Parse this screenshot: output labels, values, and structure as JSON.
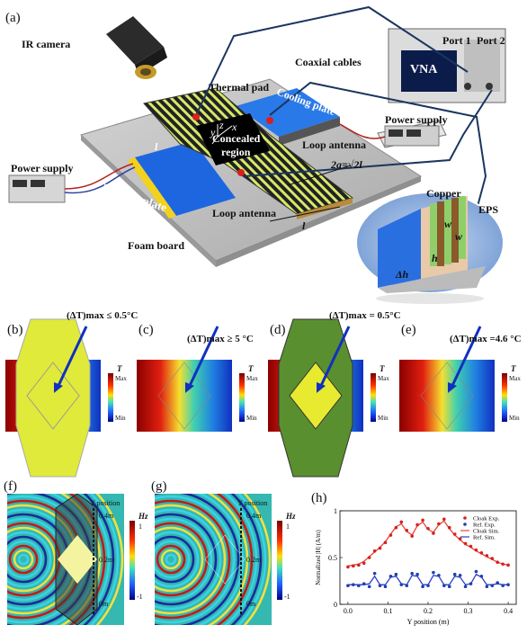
{
  "panel_a": {
    "letter": "(a)",
    "ir_camera": "IR camera",
    "coaxial_cables": "Coaxial cables",
    "vna": "VNA",
    "port1": "Port 1",
    "port2": "Port 2",
    "thermal_pad": "Thermal pad",
    "cooling_plate": "Cooling plate",
    "power_supply_right": "Power supply",
    "power_supply_left": "Power supply",
    "loop_antenna_top": "Loop antenna",
    "loop_antenna_bottom": "Loop antenna",
    "concealed_region_1": "Concealed",
    "concealed_region_2": "region",
    "heating_plate": "Heating plate",
    "foam_board": "Foam board",
    "copper": "Copper",
    "eps": "EPS",
    "dim_2a": "2a=√2l",
    "dim_l": "l",
    "dim_l_left": "l",
    "dim_w": "w",
    "dim_w2": "w",
    "dim_h": "h",
    "dim_dh": "Δh",
    "axis_x": "x",
    "axis_y": "y",
    "axis_z": "z"
  },
  "thermal_panels": [
    {
      "letter": "(b)",
      "annotation": "(ΔT)max ≤ 0.5°C",
      "style": "cloak"
    },
    {
      "letter": "(c)",
      "annotation": "(ΔT)max ≥ 5 °C",
      "style": "ref"
    },
    {
      "letter": "(d)",
      "annotation": "(ΔT)max = 0.5°C",
      "style": "cloak-sim"
    },
    {
      "letter": "(e)",
      "annotation": "(ΔT)max =4.6 °C",
      "style": "ref"
    }
  ],
  "colorbar_T": {
    "label": "T",
    "max": "Max",
    "min": "Min"
  },
  "wave_panels": [
    {
      "letter": "(f)",
      "y_title": "Y position",
      "ticks": [
        "0.4m",
        "0.2m",
        "0m"
      ],
      "cb_label": "Hz",
      "cb_max": "1",
      "cb_min": "-1"
    },
    {
      "letter": "(g)",
      "y_title": "Y position",
      "ticks": [
        "0.4m",
        "0.2m",
        "0m"
      ],
      "cb_label": "Hz",
      "cb_max": "1",
      "cb_min": "-1"
    }
  ],
  "chart_letter": "(h)",
  "chart_data": {
    "type": "line",
    "xlabel": "Y position (m)",
    "ylabel": "Normalized |H| (A/m)",
    "xlim": [
      -0.02,
      0.42
    ],
    "ylim": [
      0,
      1
    ],
    "xticks": [
      "0.0",
      "0.1",
      "0.2",
      "0.3",
      "0.4"
    ],
    "yticks": [
      "0",
      "0.5",
      "1"
    ],
    "legend_position": "top-right",
    "series": [
      {
        "name": "Cloak Exp.",
        "style": "markers",
        "color": "#d62020",
        "x": [
          0.0,
          0.0133,
          0.0267,
          0.04,
          0.0533,
          0.0667,
          0.08,
          0.0933,
          0.1067,
          0.12,
          0.1333,
          0.1467,
          0.16,
          0.1733,
          0.1867,
          0.2,
          0.2133,
          0.2267,
          0.24,
          0.2533,
          0.2667,
          0.28,
          0.2933,
          0.3067,
          0.32,
          0.3333,
          0.3467,
          0.36,
          0.3733,
          0.3867,
          0.4
        ],
        "y": [
          0.4,
          0.41,
          0.42,
          0.44,
          0.5,
          0.57,
          0.6,
          0.66,
          0.74,
          0.82,
          0.88,
          0.79,
          0.73,
          0.85,
          0.9,
          0.81,
          0.76,
          0.86,
          0.91,
          0.82,
          0.75,
          0.7,
          0.65,
          0.62,
          0.58,
          0.55,
          0.52,
          0.49,
          0.45,
          0.43,
          0.42
        ]
      },
      {
        "name": "Ref. Exp.",
        "style": "markers",
        "color": "#1f3fb0",
        "x": [
          0.0,
          0.0133,
          0.0267,
          0.04,
          0.0533,
          0.0667,
          0.08,
          0.0933,
          0.1067,
          0.12,
          0.1333,
          0.1467,
          0.16,
          0.1733,
          0.1867,
          0.2,
          0.2133,
          0.2267,
          0.24,
          0.2533,
          0.2667,
          0.28,
          0.2933,
          0.3067,
          0.32,
          0.3333,
          0.3467,
          0.36,
          0.3733,
          0.3867,
          0.4
        ],
        "y": [
          0.2,
          0.21,
          0.2,
          0.22,
          0.19,
          0.33,
          0.2,
          0.19,
          0.3,
          0.32,
          0.21,
          0.2,
          0.33,
          0.32,
          0.19,
          0.2,
          0.34,
          0.31,
          0.2,
          0.19,
          0.32,
          0.31,
          0.19,
          0.22,
          0.35,
          0.3,
          0.19,
          0.2,
          0.23,
          0.2,
          0.21
        ]
      },
      {
        "name": "Cloak Sim.",
        "style": "line",
        "color": "#e8453c",
        "x": [
          0.0,
          0.0133,
          0.0267,
          0.04,
          0.0533,
          0.0667,
          0.08,
          0.0933,
          0.1067,
          0.12,
          0.1333,
          0.1467,
          0.16,
          0.1733,
          0.1867,
          0.2,
          0.2133,
          0.2267,
          0.24,
          0.2533,
          0.2667,
          0.28,
          0.2933,
          0.3067,
          0.32,
          0.3333,
          0.3467,
          0.36,
          0.3733,
          0.3867,
          0.4
        ],
        "y": [
          0.41,
          0.42,
          0.43,
          0.46,
          0.51,
          0.56,
          0.61,
          0.67,
          0.75,
          0.83,
          0.86,
          0.78,
          0.74,
          0.84,
          0.88,
          0.8,
          0.77,
          0.85,
          0.89,
          0.81,
          0.74,
          0.69,
          0.64,
          0.61,
          0.57,
          0.54,
          0.51,
          0.48,
          0.45,
          0.43,
          0.42
        ]
      },
      {
        "name": "Ref. Sim.",
        "style": "line",
        "color": "#2a3fc0",
        "x": [
          0.0,
          0.0133,
          0.0267,
          0.04,
          0.0533,
          0.0667,
          0.08,
          0.0933,
          0.1067,
          0.12,
          0.1333,
          0.1467,
          0.16,
          0.1733,
          0.1867,
          0.2,
          0.2133,
          0.2267,
          0.24,
          0.2533,
          0.2667,
          0.28,
          0.2933,
          0.3067,
          0.32,
          0.3333,
          0.3467,
          0.36,
          0.3733,
          0.3867,
          0.4
        ],
        "y": [
          0.21,
          0.21,
          0.21,
          0.21,
          0.22,
          0.3,
          0.21,
          0.21,
          0.29,
          0.3,
          0.22,
          0.21,
          0.31,
          0.3,
          0.21,
          0.21,
          0.31,
          0.3,
          0.21,
          0.21,
          0.3,
          0.29,
          0.21,
          0.22,
          0.32,
          0.29,
          0.21,
          0.21,
          0.22,
          0.21,
          0.21
        ]
      }
    ]
  }
}
